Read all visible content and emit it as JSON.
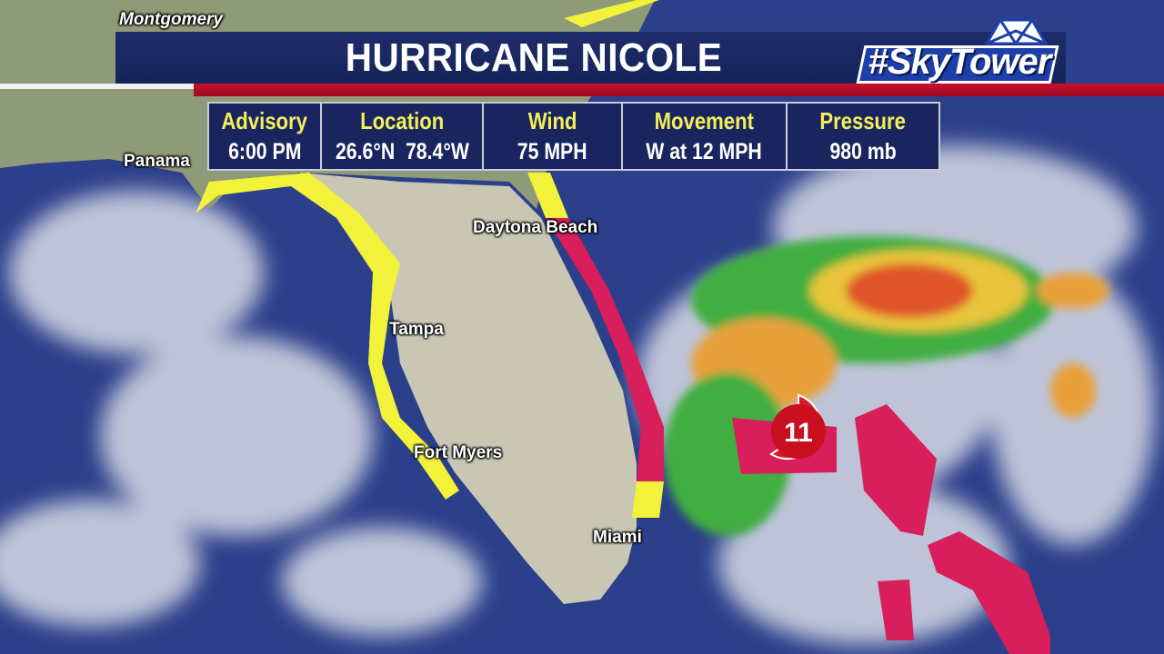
{
  "header": {
    "title": "HURRICANE NICOLE",
    "logo_text": "#SkyTower"
  },
  "advisory_table": [
    {
      "label": "Advisory",
      "value": "6:00 PM"
    },
    {
      "label": "Location",
      "value": "26.6°N  78.4°W"
    },
    {
      "label": "Wind",
      "value": "75 MPH"
    },
    {
      "label": "Movement",
      "value": "W at 12 MPH"
    },
    {
      "label": "Pressure",
      "value": "980 mb"
    }
  ],
  "map": {
    "cities": {
      "montgomery": "Montgomery",
      "panama": "Panama",
      "daytona": "Daytona Beach",
      "tampa": "Tampa",
      "fort_myers": "Fort Myers",
      "miami": "Miami"
    },
    "storm_marker": {
      "icon": "hurricane-icon",
      "category_label": "11"
    },
    "colors": {
      "hurricane_warning": "#d81e5b",
      "tropical_storm_warning": "#f2f23a",
      "ocean": "#2b3f8a",
      "land": "#c9c6b4"
    }
  }
}
